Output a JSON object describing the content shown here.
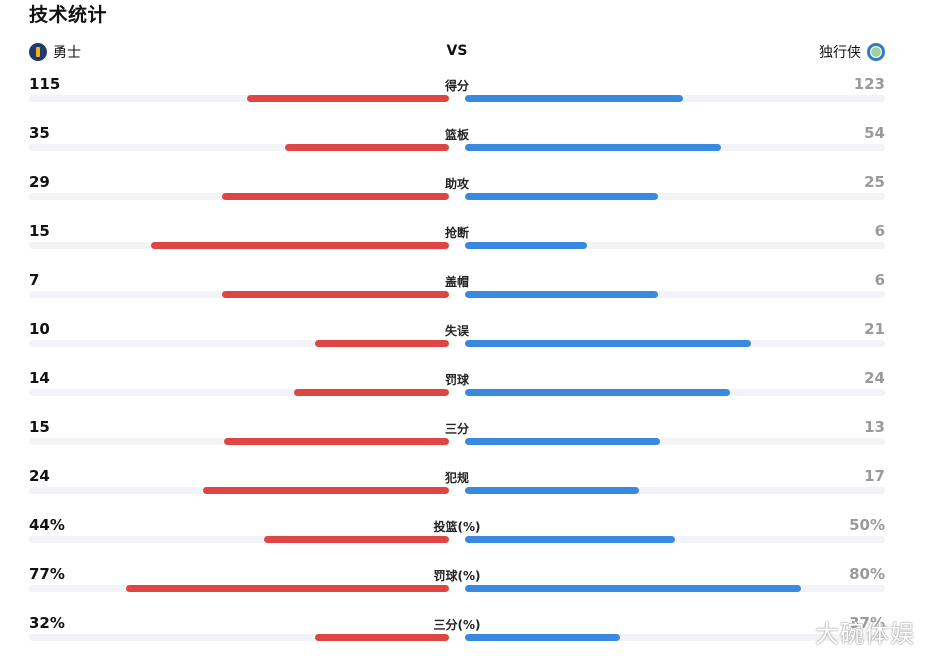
{
  "title": "技术统计",
  "home_team": {
    "name": "勇士",
    "logo_icon": "warriors-logo-icon"
  },
  "away_team": {
    "name": "独行侠",
    "logo_icon": "mavericks-logo-icon"
  },
  "vs_label": "VS",
  "colors": {
    "home_bar": "#e04545",
    "away_bar": "#3a89e0",
    "track": "#f1f3f6"
  },
  "stats": [
    {
      "label": "得分",
      "home": "115",
      "away": "123",
      "home_fill": 0.48,
      "away_fill": 0.52
    },
    {
      "label": "篮板",
      "home": "35",
      "away": "54",
      "home_fill": 0.39,
      "away_fill": 0.61
    },
    {
      "label": "助攻",
      "home": "29",
      "away": "25",
      "home_fill": 0.54,
      "away_fill": 0.46
    },
    {
      "label": "抢断",
      "home": "15",
      "away": "6",
      "home_fill": 0.71,
      "away_fill": 0.29
    },
    {
      "label": "盖帽",
      "home": "7",
      "away": "6",
      "home_fill": 0.54,
      "away_fill": 0.46
    },
    {
      "label": "失误",
      "home": "10",
      "away": "21",
      "home_fill": 0.32,
      "away_fill": 0.68
    },
    {
      "label": "罚球",
      "home": "14",
      "away": "24",
      "home_fill": 0.37,
      "away_fill": 0.63
    },
    {
      "label": "三分",
      "home": "15",
      "away": "13",
      "home_fill": 0.535,
      "away_fill": 0.465
    },
    {
      "label": "犯规",
      "home": "24",
      "away": "17",
      "home_fill": 0.585,
      "away_fill": 0.415
    },
    {
      "label": "投篮(%)",
      "home": "44%",
      "away": "50%",
      "home_fill": 0.44,
      "away_fill": 0.5
    },
    {
      "label": "罚球(%)",
      "home": "77%",
      "away": "80%",
      "home_fill": 0.77,
      "away_fill": 0.8
    },
    {
      "label": "三分(%)",
      "home": "32%",
      "away": "37%",
      "home_fill": 0.32,
      "away_fill": 0.37
    }
  ],
  "watermark": "大碗体娱"
}
